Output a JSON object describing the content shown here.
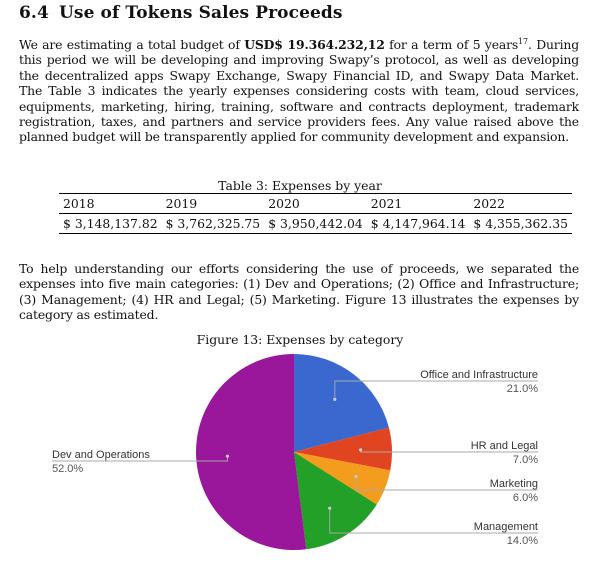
{
  "section": {
    "number": "6.4",
    "title": "Use of Tokens Sales Proceeds"
  },
  "paragraph1": {
    "lead": "We are estimating a total budget of ",
    "budget": "USD$ 19.364.232,12",
    "mid": " for a term of 5 years",
    "footnote": "17",
    "rest": ". During this period we will be developing and improving Swapy’s protocol, as well as developing the decentralized apps Swapy Exchange, Swapy Financial ID, and Swapy Data Market. The Table 3 indicates the yearly expenses considering costs with team, cloud services, equipments, marketing, hiring, training, software and contracts deployment, trademark registration, taxes, and partners and service providers fees. Any value raised above the planned budget will be transparently applied for community development and expansion."
  },
  "table": {
    "caption": "Table 3: Expenses by year",
    "headers": [
      "2018",
      "2019",
      "2020",
      "2021",
      "2022"
    ],
    "values": [
      "$ 3,148,137.82",
      "$ 3,762,325.75",
      "$ 3,950,442.04",
      "$ 4,147,964.14",
      "$ 4,355,362.35"
    ]
  },
  "paragraph2": "To help understanding our efforts considering the use of proceeds, we separated the expenses into five main categories: (1) Dev and Operations; (2) Office and Infrastructure; (3) Management; (4) HR and Legal; (5) Marketing. Figure 13 illustrates the expenses by category as estimated.",
  "figure": {
    "caption": "Figure 13: Expenses by category"
  },
  "chart_data": {
    "type": "pie",
    "title": "",
    "slices": [
      {
        "label": "Office and Infrastructure",
        "pct_label": "21.0%",
        "value": 21.0,
        "color": "#3b68cf"
      },
      {
        "label": "HR and Legal",
        "pct_label": "7.0%",
        "value": 7.0,
        "color": "#e04420"
      },
      {
        "label": "Marketing",
        "pct_label": "6.0%",
        "value": 6.0,
        "color": "#f39c1d"
      },
      {
        "label": "Management",
        "pct_label": "14.0%",
        "value": 14.0,
        "color": "#22a027"
      },
      {
        "label": "Dev and Operations",
        "pct_label": "52.0%",
        "value": 52.0,
        "color": "#9a169a"
      }
    ],
    "start": "12 o'clock",
    "direction": "clockwise",
    "legend": "none (labels with leader lines)"
  }
}
